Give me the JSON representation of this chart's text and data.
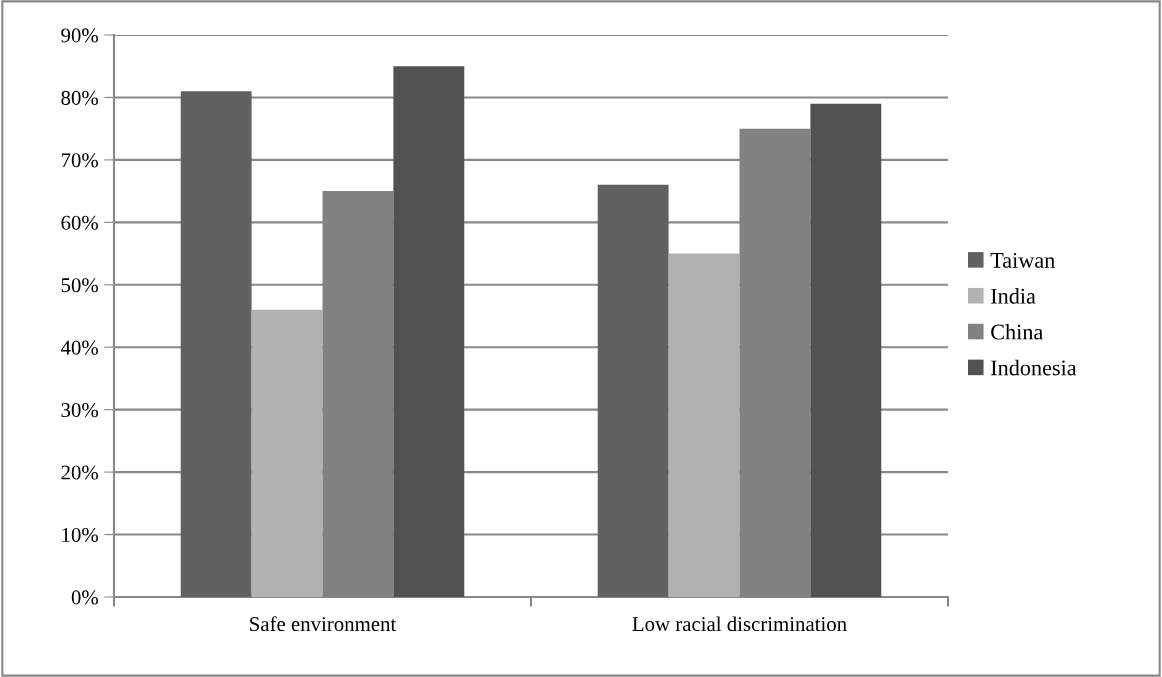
{
  "chart_data": {
    "type": "bar",
    "categories": [
      "Safe environment",
      "Low racial discrimination"
    ],
    "series": [
      {
        "name": "Taiwan",
        "color": "#616161",
        "values": [
          81,
          66
        ]
      },
      {
        "name": "India",
        "color": "#b2b2b2",
        "values": [
          46,
          55
        ]
      },
      {
        "name": "China",
        "color": "#828282",
        "values": [
          65,
          75
        ]
      },
      {
        "name": "Indonesia",
        "color": "#525252",
        "values": [
          85,
          79
        ]
      }
    ],
    "ylim": [
      0,
      90
    ],
    "yticks": [
      {
        "value": 0,
        "label": "0%"
      },
      {
        "value": 10,
        "label": "10%"
      },
      {
        "value": 20,
        "label": "20%"
      },
      {
        "value": 30,
        "label": "30%"
      },
      {
        "value": 40,
        "label": "40%"
      },
      {
        "value": 50,
        "label": "50%"
      },
      {
        "value": 60,
        "label": "60%"
      },
      {
        "value": 70,
        "label": "70%"
      },
      {
        "value": 80,
        "label": "80%"
      },
      {
        "value": 90,
        "label": "90%"
      }
    ],
    "grid": "y",
    "legend": "right"
  }
}
